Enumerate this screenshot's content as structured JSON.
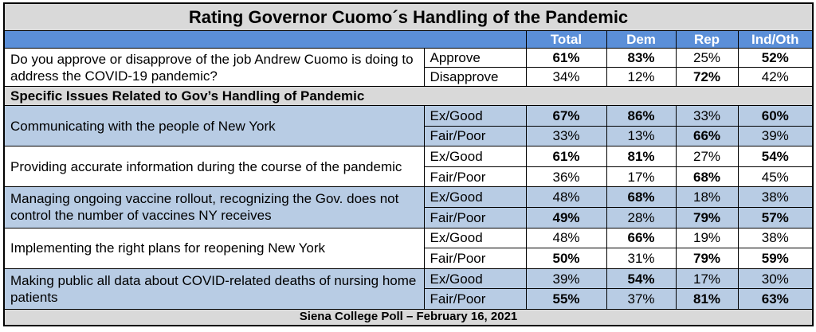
{
  "title": "Rating Governor Cuomo´s Handling of the Pandemic",
  "columns": [
    "Total",
    "Dem",
    "Rep",
    "Ind/Oth"
  ],
  "questions": [
    {
      "text": "Do you approve or disapprove of the job Andrew Cuomo is doing to address the COVID-19 pandemic?",
      "responses": [
        {
          "label": "Approve",
          "values": [
            "61%",
            "83%",
            "25%",
            "52%"
          ],
          "bold": [
            true,
            true,
            false,
            true
          ]
        },
        {
          "label": "Disapprove",
          "values": [
            "34%",
            "12%",
            "72%",
            "42%"
          ],
          "bold": [
            false,
            false,
            true,
            false
          ]
        }
      ]
    }
  ],
  "section": "Specific Issues Related to Gov’s Handling of Pandemic",
  "issues": [
    {
      "text": "Communicating with the people of New York",
      "responses": [
        {
          "label": "Ex/Good",
          "values": [
            "67%",
            "86%",
            "33%",
            "60%"
          ],
          "bold": [
            true,
            true,
            false,
            true
          ]
        },
        {
          "label": "Fair/Poor",
          "values": [
            "33%",
            "13%",
            "66%",
            "39%"
          ],
          "bold": [
            false,
            false,
            true,
            false
          ]
        }
      ]
    },
    {
      "text": "Providing accurate information during the course of the pandemic",
      "responses": [
        {
          "label": "Ex/Good",
          "values": [
            "61%",
            "81%",
            "27%",
            "54%"
          ],
          "bold": [
            true,
            true,
            false,
            true
          ]
        },
        {
          "label": "Fair/Poor",
          "values": [
            "36%",
            "17%",
            "68%",
            "45%"
          ],
          "bold": [
            false,
            false,
            true,
            false
          ]
        }
      ]
    },
    {
      "text": "Managing ongoing vaccine rollout, recognizing the Gov. does not control the number of vaccines NY receives",
      "responses": [
        {
          "label": "Ex/Good",
          "values": [
            "48%",
            "68%",
            "18%",
            "38%"
          ],
          "bold": [
            false,
            true,
            false,
            false
          ]
        },
        {
          "label": "Fair/Poor",
          "values": [
            "49%",
            "28%",
            "79%",
            "57%"
          ],
          "bold": [
            true,
            false,
            true,
            true
          ]
        }
      ]
    },
    {
      "text": "Implementing the right plans for reopening New York",
      "responses": [
        {
          "label": "Ex/Good",
          "values": [
            "48%",
            "66%",
            "19%",
            "38%"
          ],
          "bold": [
            false,
            true,
            false,
            false
          ]
        },
        {
          "label": "Fair/Poor",
          "values": [
            "50%",
            "31%",
            "79%",
            "59%"
          ],
          "bold": [
            true,
            false,
            true,
            true
          ]
        }
      ]
    },
    {
      "text": "Making public all data about COVID-related deaths of nursing home patients",
      "responses": [
        {
          "label": "Ex/Good",
          "values": [
            "39%",
            "54%",
            "17%",
            "30%"
          ],
          "bold": [
            false,
            true,
            false,
            false
          ]
        },
        {
          "label": "Fair/Poor",
          "values": [
            "55%",
            "37%",
            "81%",
            "63%"
          ],
          "bold": [
            true,
            false,
            true,
            true
          ]
        }
      ]
    }
  ],
  "footer": "Siena College Poll – February 16, 2021"
}
